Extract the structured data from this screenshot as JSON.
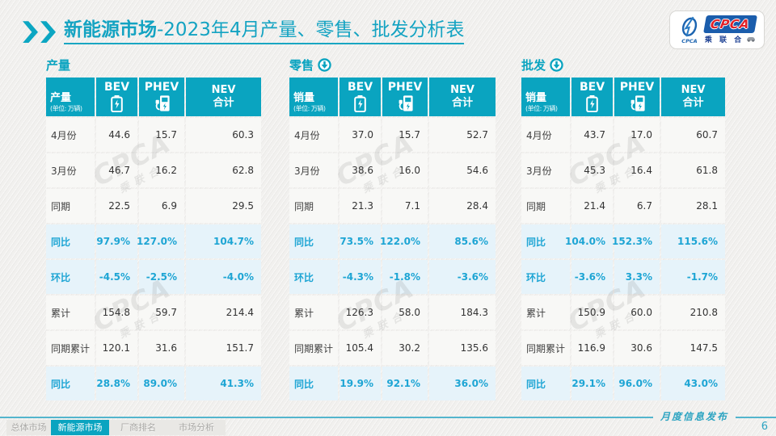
{
  "title": {
    "highlight": "新能源市场",
    "rest": "-2023年4月产量、零售、批发分析表"
  },
  "logo": {
    "emblem_text": "CPCA",
    "brand": "CPCA",
    "brand_cn": "乘 联 合"
  },
  "colors": {
    "accent_teal": "#0aa4c0",
    "ratio_blue": "#1ea5d4",
    "ratio_bg": "#e6f3fa",
    "title_teal": "#14a3c2"
  },
  "watermark": {
    "line1": "CPCA",
    "line2": "乘联合"
  },
  "panels": [
    {
      "section_label": "产量",
      "arrow_icon": false,
      "header": {
        "col0_title": "产量",
        "col0_unit": "(单位: 万辆)",
        "col1": "BEV",
        "col2": "PHEV",
        "col3_line1": "NEV",
        "col3_line2": "合计"
      },
      "rows": [
        {
          "label": "4月份",
          "type": "normal",
          "values": [
            "44.6",
            "15.7",
            "60.3"
          ]
        },
        {
          "label": "3月份",
          "type": "normal",
          "values": [
            "46.7",
            "16.2",
            "62.8"
          ]
        },
        {
          "label": "同期",
          "type": "normal",
          "values": [
            "22.5",
            "6.9",
            "29.5"
          ]
        },
        {
          "label": "同比",
          "type": "ratio",
          "values": [
            "97.9%",
            "127.0%",
            "104.7%"
          ]
        },
        {
          "label": "环比",
          "type": "ratio",
          "values": [
            "-4.5%",
            "-2.5%",
            "-4.0%"
          ]
        },
        {
          "label": "累计",
          "type": "normal",
          "values": [
            "154.8",
            "59.7",
            "214.4"
          ]
        },
        {
          "label": "同期累计",
          "type": "normal",
          "values": [
            "120.1",
            "31.6",
            "151.7"
          ]
        },
        {
          "label": "同比",
          "type": "ratio",
          "values": [
            "28.8%",
            "89.0%",
            "41.3%"
          ]
        }
      ]
    },
    {
      "section_label": "零售",
      "arrow_icon": true,
      "header": {
        "col0_title": "销量",
        "col0_unit": "(单位: 万辆)",
        "col1": "BEV",
        "col2": "PHEV",
        "col3_line1": "NEV",
        "col3_line2": "合计"
      },
      "rows": [
        {
          "label": "4月份",
          "type": "normal",
          "values": [
            "37.0",
            "15.7",
            "52.7"
          ]
        },
        {
          "label": "3月份",
          "type": "normal",
          "values": [
            "38.6",
            "16.0",
            "54.6"
          ]
        },
        {
          "label": "同期",
          "type": "normal",
          "values": [
            "21.3",
            "7.1",
            "28.4"
          ]
        },
        {
          "label": "同比",
          "type": "ratio",
          "values": [
            "73.5%",
            "122.0%",
            "85.6%"
          ]
        },
        {
          "label": "环比",
          "type": "ratio",
          "values": [
            "-4.3%",
            "-1.8%",
            "-3.6%"
          ]
        },
        {
          "label": "累计",
          "type": "normal",
          "values": [
            "126.3",
            "58.0",
            "184.3"
          ]
        },
        {
          "label": "同期累计",
          "type": "normal",
          "values": [
            "105.4",
            "30.2",
            "135.6"
          ]
        },
        {
          "label": "同比",
          "type": "ratio",
          "values": [
            "19.9%",
            "92.1%",
            "36.0%"
          ]
        }
      ]
    },
    {
      "section_label": "批发",
      "arrow_icon": true,
      "header": {
        "col0_title": "销量",
        "col0_unit": "(单位: 万辆)",
        "col1": "BEV",
        "col2": "PHEV",
        "col3_line1": "NEV",
        "col3_line2": "合计"
      },
      "rows": [
        {
          "label": "4月份",
          "type": "normal",
          "values": [
            "43.7",
            "17.0",
            "60.7"
          ]
        },
        {
          "label": "3月份",
          "type": "normal",
          "values": [
            "45.3",
            "16.4",
            "61.8"
          ]
        },
        {
          "label": "同期",
          "type": "normal",
          "values": [
            "21.4",
            "6.7",
            "28.1"
          ]
        },
        {
          "label": "同比",
          "type": "ratio",
          "values": [
            "104.0%",
            "152.3%",
            "115.6%"
          ]
        },
        {
          "label": "环比",
          "type": "ratio",
          "values": [
            "-3.6%",
            "3.3%",
            "-1.7%"
          ]
        },
        {
          "label": "累计",
          "type": "normal",
          "values": [
            "150.9",
            "60.0",
            "210.8"
          ]
        },
        {
          "label": "同期累计",
          "type": "normal",
          "values": [
            "116.9",
            "30.6",
            "147.5"
          ]
        },
        {
          "label": "同比",
          "type": "ratio",
          "values": [
            "29.1%",
            "96.0%",
            "43.0%"
          ]
        }
      ]
    }
  ],
  "footer": {
    "tabs": [
      {
        "label": "总体市场",
        "active": false
      },
      {
        "label": "新能源市场",
        "active": true
      },
      {
        "label": "厂商排名",
        "active": false
      },
      {
        "label": "市场分析",
        "active": false
      }
    ],
    "publication": "月度信息发布",
    "page_number": "6"
  }
}
